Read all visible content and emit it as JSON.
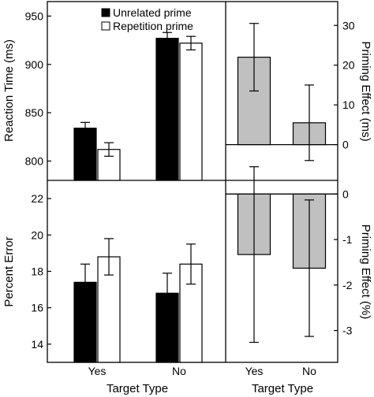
{
  "chart_data": [
    {
      "id": "rt",
      "type": "bar",
      "ylabel": "Reaction Time (ms)",
      "ylim": [
        780,
        965
      ],
      "yticks": [
        800,
        850,
        900,
        950
      ],
      "categories": [
        "Yes",
        "No"
      ],
      "series": [
        {
          "name": "Unrelated prime",
          "color": "#000000",
          "values": [
            834,
            927
          ],
          "error": [
            6,
            6
          ]
        },
        {
          "name": "Repetition prime",
          "color": "#ffffff",
          "values": [
            812,
            922
          ],
          "error": [
            7,
            7
          ]
        }
      ],
      "legend_position": "top"
    },
    {
      "id": "rt-priming",
      "type": "bar",
      "ylabel": "Priming Effect (ms)",
      "ylim": [
        -9,
        36
      ],
      "yticks": [
        0,
        10,
        20,
        30
      ],
      "categories": [
        "Yes",
        "No"
      ],
      "series": [
        {
          "color": "#c0c0c0",
          "values": [
            22,
            5.5
          ],
          "error": [
            8.5,
            9.5
          ]
        }
      ]
    },
    {
      "id": "pe",
      "type": "bar",
      "ylabel": "Percent Error",
      "ylim": [
        13,
        23
      ],
      "yticks": [
        14,
        16,
        18,
        20,
        22
      ],
      "categories": [
        "Yes",
        "No"
      ],
      "series": [
        {
          "name": "Unrelated prime",
          "color": "#000000",
          "values": [
            17.4,
            16.8
          ],
          "error": [
            1.0,
            1.1
          ]
        },
        {
          "name": "Repetition prime",
          "color": "#ffffff",
          "values": [
            18.8,
            18.4
          ],
          "error": [
            1.0,
            1.1
          ]
        }
      ]
    },
    {
      "id": "pe-priming",
      "type": "bar",
      "ylabel": "Priming Effect (%)",
      "ylim": [
        -3.7,
        0.3
      ],
      "yticks": [
        0,
        -1,
        -2,
        -3
      ],
      "categories": [
        "Yes",
        "No"
      ],
      "series": [
        {
          "color": "#c0c0c0",
          "values": [
            -1.33,
            -1.63
          ],
          "error": [
            1.93,
            1.5
          ]
        }
      ]
    }
  ],
  "xaxis": {
    "left_label": "Target Type",
    "right_label": "Target Type"
  }
}
